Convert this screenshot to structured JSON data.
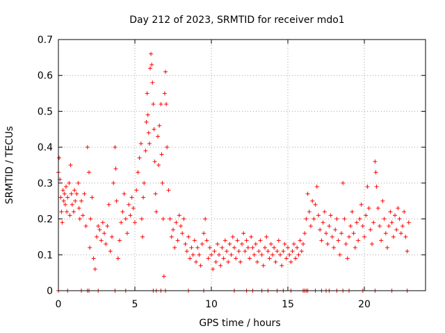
{
  "chart_data": {
    "type": "scatter",
    "title": "Day 212 of 2023, SRMTID for receiver mdo1",
    "xlabel": "GPS time / hours",
    "ylabel": "SRMTID / TECUs",
    "xlim": [
      0,
      24
    ],
    "ylim": [
      0,
      0.7
    ],
    "xticks": [
      0,
      5,
      10,
      15,
      20
    ],
    "xtick_labels": [
      "0",
      "5",
      "10",
      "15",
      "20"
    ],
    "yticks": [
      0,
      0.1,
      0.2,
      0.3,
      0.4,
      0.5,
      0.6,
      0.7
    ],
    "ytick_labels": [
      "0",
      "0.1",
      "0.2",
      "0.3",
      "0.4",
      "0.5",
      "0.6",
      "0.7"
    ],
    "grid": true,
    "marker": "plus",
    "marker_color": "#ff0000",
    "series": [
      {
        "name": "SRMTID",
        "points": [
          [
            0.0,
            0.33
          ],
          [
            0.05,
            0.37
          ],
          [
            0.1,
            0.31
          ],
          [
            0.15,
            0.26
          ],
          [
            0.2,
            0.22
          ],
          [
            0.25,
            0.19
          ],
          [
            0.3,
            0.28
          ],
          [
            0.35,
            0.25
          ],
          [
            0.4,
            0.27
          ],
          [
            0.45,
            0.24
          ],
          [
            0.5,
            0.29
          ],
          [
            0.55,
            0.22
          ],
          [
            0.6,
            0.26
          ],
          [
            0.7,
            0.3
          ],
          [
            0.75,
            0.21
          ],
          [
            0.8,
            0.35
          ],
          [
            0.85,
            0.27
          ],
          [
            0.9,
            0.24
          ],
          [
            1.0,
            0.22
          ],
          [
            1.05,
            0.28
          ],
          [
            1.1,
            0.25
          ],
          [
            1.2,
            0.27
          ],
          [
            1.3,
            0.3
          ],
          [
            1.35,
            0.23
          ],
          [
            1.4,
            0.2
          ],
          [
            1.5,
            0.25
          ],
          [
            1.6,
            0.21
          ],
          [
            1.7,
            0.27
          ],
          [
            1.8,
            0.18
          ],
          [
            1.9,
            0.4
          ],
          [
            2.0,
            0.33
          ],
          [
            2.05,
            0.12
          ],
          [
            2.1,
            0.2
          ],
          [
            2.2,
            0.26
          ],
          [
            2.3,
            0.09
          ],
          [
            2.4,
            0.06
          ],
          [
            2.5,
            0.15
          ],
          [
            2.6,
            0.18
          ],
          [
            2.7,
            0.17
          ],
          [
            2.8,
            0.14
          ],
          [
            2.9,
            0.19
          ],
          [
            3.0,
            0.16
          ],
          [
            3.1,
            0.13
          ],
          [
            3.2,
            0.18
          ],
          [
            3.3,
            0.24
          ],
          [
            3.4,
            0.11
          ],
          [
            3.5,
            0.15
          ],
          [
            3.6,
            0.3
          ],
          [
            3.7,
            0.4
          ],
          [
            3.75,
            0.34
          ],
          [
            3.8,
            0.25
          ],
          [
            3.9,
            0.09
          ],
          [
            4.0,
            0.14
          ],
          [
            4.1,
            0.19
          ],
          [
            4.2,
            0.22
          ],
          [
            4.3,
            0.27
          ],
          [
            4.4,
            0.2
          ],
          [
            4.5,
            0.16
          ],
          [
            4.6,
            0.24
          ],
          [
            4.7,
            0.21
          ],
          [
            4.8,
            0.26
          ],
          [
            4.9,
            0.23
          ],
          [
            5.0,
            0.19
          ],
          [
            5.1,
            0.28
          ],
          [
            5.2,
            0.33
          ],
          [
            5.3,
            0.37
          ],
          [
            5.4,
            0.41
          ],
          [
            5.45,
            0.2
          ],
          [
            5.5,
            0.15
          ],
          [
            5.55,
            0.26
          ],
          [
            5.6,
            0.3
          ],
          [
            5.7,
            0.39
          ],
          [
            5.75,
            0.47
          ],
          [
            5.8,
            0.55
          ],
          [
            5.85,
            0.49
          ],
          [
            5.9,
            0.44
          ],
          [
            5.95,
            0.41
          ],
          [
            6.0,
            0.62
          ],
          [
            6.05,
            0.66
          ],
          [
            6.1,
            0.63
          ],
          [
            6.15,
            0.58
          ],
          [
            6.2,
            0.52
          ],
          [
            6.25,
            0.45
          ],
          [
            6.3,
            0.36
          ],
          [
            6.35,
            0.27
          ],
          [
            6.4,
            0.22
          ],
          [
            6.5,
            0.43
          ],
          [
            6.55,
            0.35
          ],
          [
            6.6,
            0.46
          ],
          [
            6.7,
            0.52
          ],
          [
            6.75,
            0.38
          ],
          [
            6.8,
            0.3
          ],
          [
            6.85,
            0.2
          ],
          [
            6.9,
            0.04
          ],
          [
            6.95,
            0.55
          ],
          [
            7.0,
            0.61
          ],
          [
            7.05,
            0.52
          ],
          [
            7.1,
            0.4
          ],
          [
            7.2,
            0.28
          ],
          [
            7.3,
            0.2
          ],
          [
            7.4,
            0.15
          ],
          [
            7.5,
            0.17
          ],
          [
            7.6,
            0.12
          ],
          [
            7.7,
            0.19
          ],
          [
            7.8,
            0.14
          ],
          [
            7.9,
            0.21
          ],
          [
            8.0,
            0.18
          ],
          [
            8.1,
            0.16
          ],
          [
            8.2,
            0.2
          ],
          [
            8.3,
            0.13
          ],
          [
            8.4,
            0.11
          ],
          [
            8.5,
            0.15
          ],
          [
            8.6,
            0.09
          ],
          [
            8.7,
            0.12
          ],
          [
            8.8,
            0.1
          ],
          [
            8.9,
            0.14
          ],
          [
            9.0,
            0.08
          ],
          [
            9.1,
            0.12
          ],
          [
            9.2,
            0.1
          ],
          [
            9.3,
            0.07
          ],
          [
            9.4,
            0.13
          ],
          [
            9.5,
            0.16
          ],
          [
            9.6,
            0.2
          ],
          [
            9.7,
            0.14
          ],
          [
            9.8,
            0.09
          ],
          [
            9.9,
            0.12
          ],
          [
            10.0,
            0.1
          ],
          [
            10.1,
            0.06
          ],
          [
            10.2,
            0.11
          ],
          [
            10.3,
            0.08
          ],
          [
            10.4,
            0.13
          ],
          [
            10.5,
            0.1
          ],
          [
            10.6,
            0.07
          ],
          [
            10.7,
            0.12
          ],
          [
            10.8,
            0.09
          ],
          [
            10.9,
            0.14
          ],
          [
            11.0,
            0.11
          ],
          [
            11.1,
            0.08
          ],
          [
            11.2,
            0.13
          ],
          [
            11.3,
            0.1
          ],
          [
            11.4,
            0.15
          ],
          [
            11.5,
            0.12
          ],
          [
            11.6,
            0.09
          ],
          [
            11.7,
            0.14
          ],
          [
            11.8,
            0.11
          ],
          [
            11.9,
            0.08
          ],
          [
            12.0,
            0.13
          ],
          [
            12.1,
            0.16
          ],
          [
            12.2,
            0.11
          ],
          [
            12.3,
            0.14
          ],
          [
            12.4,
            0.12
          ],
          [
            12.5,
            0.09
          ],
          [
            12.6,
            0.15
          ],
          [
            12.7,
            0.12
          ],
          [
            12.8,
            0.1
          ],
          [
            12.9,
            0.13
          ],
          [
            13.0,
            0.08
          ],
          [
            13.1,
            0.11
          ],
          [
            13.2,
            0.14
          ],
          [
            13.3,
            0.1
          ],
          [
            13.4,
            0.07
          ],
          [
            13.5,
            0.12
          ],
          [
            13.6,
            0.15
          ],
          [
            13.7,
            0.11
          ],
          [
            13.8,
            0.09
          ],
          [
            13.9,
            0.13
          ],
          [
            14.0,
            0.1
          ],
          [
            14.1,
            0.12
          ],
          [
            14.2,
            0.08
          ],
          [
            14.3,
            0.11
          ],
          [
            14.4,
            0.14
          ],
          [
            14.5,
            0.1
          ],
          [
            14.6,
            0.07
          ],
          [
            14.7,
            0.11
          ],
          [
            14.8,
            0.13
          ],
          [
            14.9,
            0.09
          ],
          [
            15.0,
            0.12
          ],
          [
            15.1,
            0.1
          ],
          [
            15.2,
            0.08
          ],
          [
            15.3,
            0.11
          ],
          [
            15.4,
            0.13
          ],
          [
            15.5,
            0.09
          ],
          [
            15.6,
            0.12
          ],
          [
            15.7,
            0.1
          ],
          [
            15.8,
            0.14
          ],
          [
            15.9,
            0.11
          ],
          [
            16.0,
            0.13
          ],
          [
            16.1,
            0.16
          ],
          [
            16.2,
            0.2
          ],
          [
            16.3,
            0.27
          ],
          [
            16.4,
            0.22
          ],
          [
            16.5,
            0.18
          ],
          [
            16.6,
            0.25
          ],
          [
            16.7,
            0.2
          ],
          [
            16.8,
            0.24
          ],
          [
            16.9,
            0.29
          ],
          [
            17.0,
            0.21
          ],
          [
            17.1,
            0.17
          ],
          [
            17.2,
            0.14
          ],
          [
            17.3,
            0.19
          ],
          [
            17.4,
            0.22
          ],
          [
            17.5,
            0.16
          ],
          [
            17.6,
            0.13
          ],
          [
            17.7,
            0.18
          ],
          [
            17.8,
            0.21
          ],
          [
            17.9,
            0.15
          ],
          [
            18.0,
            0.12
          ],
          [
            18.1,
            0.17
          ],
          [
            18.2,
            0.2
          ],
          [
            18.3,
            0.14
          ],
          [
            18.4,
            0.1
          ],
          [
            18.5,
            0.16
          ],
          [
            18.6,
            0.3
          ],
          [
            18.7,
            0.2
          ],
          [
            18.8,
            0.13
          ],
          [
            18.9,
            0.09
          ],
          [
            19.0,
            0.15
          ],
          [
            19.1,
            0.18
          ],
          [
            19.2,
            0.22
          ],
          [
            19.3,
            0.16
          ],
          [
            19.4,
            0.12
          ],
          [
            19.5,
            0.19
          ],
          [
            19.6,
            0.14
          ],
          [
            19.7,
            0.2
          ],
          [
            19.8,
            0.24
          ],
          [
            19.9,
            0.18
          ],
          [
            20.0,
            0.15
          ],
          [
            20.1,
            0.21
          ],
          [
            20.2,
            0.29
          ],
          [
            20.3,
            0.23
          ],
          [
            20.4,
            0.17
          ],
          [
            20.5,
            0.13
          ],
          [
            20.6,
            0.19
          ],
          [
            20.7,
            0.36
          ],
          [
            20.75,
            0.33
          ],
          [
            20.8,
            0.29
          ],
          [
            20.9,
            0.23
          ],
          [
            21.0,
            0.18
          ],
          [
            21.1,
            0.14
          ],
          [
            21.2,
            0.25
          ],
          [
            21.3,
            0.2
          ],
          [
            21.4,
            0.16
          ],
          [
            21.5,
            0.12
          ],
          [
            21.6,
            0.18
          ],
          [
            21.7,
            0.22
          ],
          [
            21.8,
            0.19
          ],
          [
            21.9,
            0.15
          ],
          [
            22.0,
            0.21
          ],
          [
            22.1,
            0.17
          ],
          [
            22.2,
            0.23
          ],
          [
            22.3,
            0.2
          ],
          [
            22.4,
            0.16
          ],
          [
            22.5,
            0.18
          ],
          [
            22.6,
            0.22
          ],
          [
            22.7,
            0.15
          ],
          [
            22.8,
            0.11
          ],
          [
            22.9,
            0.19
          ]
        ],
        "zero_points_x": [
          0.0,
          0.6,
          1.5,
          1.9,
          2.0,
          2.6,
          3.7,
          4.4,
          6.2,
          6.4,
          6.7,
          7.0,
          8.5,
          9.5,
          11.5,
          12.3,
          12.7,
          13.3,
          13.7,
          14.3,
          14.7,
          15.2,
          16.0,
          16.1,
          16.2,
          16.3,
          16.8,
          17.2,
          17.5,
          17.7,
          18.2,
          18.6,
          19.0,
          19.9,
          20.7,
          21.8,
          22.8
        ]
      }
    ]
  }
}
